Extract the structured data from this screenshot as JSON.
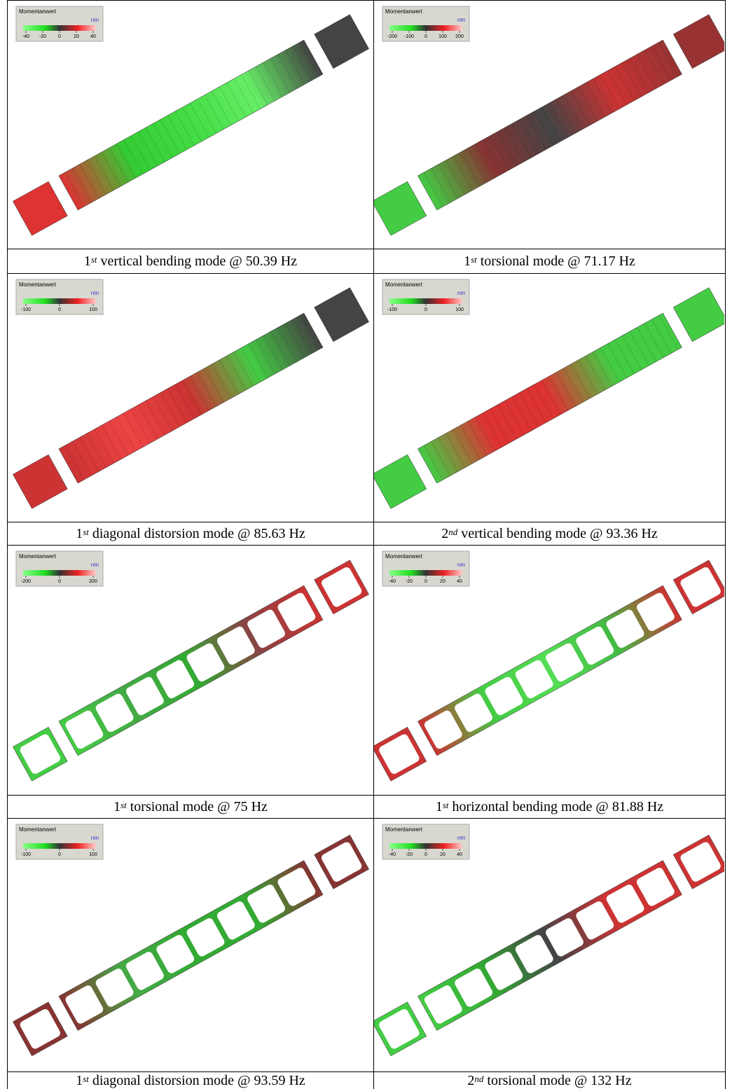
{
  "cells": [
    {
      "legend": {
        "title": "Momentanwert",
        "unit": "nm",
        "ticks": [
          -40,
          -20,
          0,
          20,
          40
        ]
      },
      "caption": {
        "ordinal": "1",
        "suffix": "st",
        "text": "vertical bending mode @ 50.39 Hz"
      }
    },
    {
      "legend": {
        "title": "Momentanwert",
        "unit": "nm",
        "ticks": [
          -200,
          -100,
          0,
          100,
          200
        ]
      },
      "caption": {
        "ordinal": "1",
        "suffix": "st",
        "text": "torsional mode @ 71.17 Hz"
      }
    },
    {
      "legend": {
        "title": "Momentanwert",
        "unit": "nm",
        "ticks": [
          -100,
          0,
          100
        ]
      },
      "caption": {
        "ordinal": "1",
        "suffix": "st",
        "text": "diagonal distorsion mode @ 85.63 Hz"
      }
    },
    {
      "legend": {
        "title": "Momentanwert",
        "unit": "nm",
        "ticks": [
          -100,
          0,
          100
        ]
      },
      "caption": {
        "ordinal": "2",
        "suffix": "nd",
        "text": "vertical bending mode @ 93.36 Hz"
      }
    },
    {
      "legend": {
        "title": "Momentanwert",
        "unit": "nm",
        "ticks": [
          -200,
          0,
          200
        ]
      },
      "caption": {
        "ordinal": "1",
        "suffix": "st",
        "text": "torsional mode @ 75 Hz"
      }
    },
    {
      "legend": {
        "title": "Momentanwert",
        "unit": "nm",
        "ticks": [
          -40,
          -20,
          0,
          20,
          40
        ]
      },
      "caption": {
        "ordinal": "1",
        "suffix": "st",
        "text": "horizontal bending mode @ 81.88 Hz"
      }
    },
    {
      "legend": {
        "title": "Momentanwert",
        "unit": "nm",
        "ticks": [
          -100,
          0,
          100
        ]
      },
      "caption": {
        "ordinal": "1",
        "suffix": "st",
        "text": "diagonal distorsion mode @ 93.59 Hz"
      }
    },
    {
      "legend": {
        "title": "Momentanwert",
        "unit": "nm",
        "ticks": [
          -40,
          -20,
          0,
          20,
          40
        ]
      },
      "caption": {
        "ordinal": "2",
        "suffix": "nd",
        "text": "torsional mode @ 132 Hz"
      }
    }
  ]
}
